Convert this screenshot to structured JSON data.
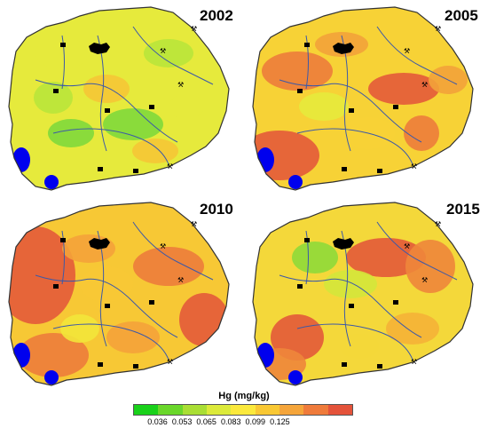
{
  "panels": [
    {
      "year": "2002",
      "palette": [
        "#7fd93b",
        "#b9e53a",
        "#e6ea3c",
        "#f5c735",
        "#f39a3a",
        "#e8623a"
      ]
    },
    {
      "year": "2005",
      "palette": [
        "#9edc3a",
        "#e6ea3c",
        "#f7d236",
        "#f2a23a",
        "#ec7c3b",
        "#e35a3a"
      ]
    },
    {
      "year": "2010",
      "palette": [
        "#c8e63b",
        "#f2e53a",
        "#f7c835",
        "#f4a23a",
        "#ec7c3b",
        "#e35a3a"
      ]
    },
    {
      "year": "2015",
      "palette": [
        "#8fda3a",
        "#d4e73b",
        "#f4d83a",
        "#f5b237",
        "#ee863b",
        "#e35a3a"
      ]
    }
  ],
  "legend": {
    "title": "Hg (mg/kg)",
    "colors": [
      "#19d11a",
      "#6ad72a",
      "#a9de34",
      "#dcea3a",
      "#fbe93c",
      "#f9c833",
      "#f5a53a",
      "#ef7b3b",
      "#e4533a"
    ],
    "ticks": [
      "0.036",
      "0.053",
      "0.065",
      "0.083",
      "0.099",
      "0.125"
    ]
  },
  "symbols": {
    "lake_color": "#0000ee",
    "river_color": "#3c59a8",
    "border_color": "#333333"
  }
}
